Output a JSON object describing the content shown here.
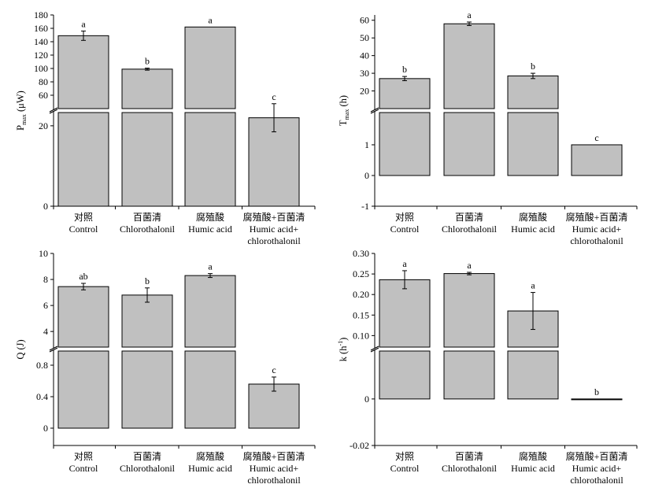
{
  "categories": [
    {
      "cn": "对照",
      "en": "Control"
    },
    {
      "cn": "百菌清",
      "en": "Chlorothalonil"
    },
    {
      "cn": "腐殖酸",
      "en": "Humic acid"
    },
    {
      "cn": "腐殖酸+百菌清",
      "en": "Humic acid+",
      "en2": "chlorothalonil"
    }
  ],
  "colors": {
    "bar_fill": "#c0c0c0",
    "bar_stroke": "#000000"
  },
  "chart_data": [
    {
      "type": "bar",
      "ylabel": "P",
      "ylabel_sub": "max",
      "ylabel_unit": " (μW)",
      "axis_break": true,
      "upper_ticks": [
        "60",
        "80",
        "100",
        "120",
        "140",
        "160",
        "180"
      ],
      "lower_ticks": [
        "0",
        "20"
      ],
      "values": [
        149,
        99,
        162,
        22
      ],
      "errors": [
        7,
        1.5,
        0,
        3.5
      ],
      "significance": [
        "a",
        "b",
        "a",
        "c"
      ]
    },
    {
      "type": "bar",
      "ylabel": "T",
      "ylabel_sub": "max",
      "ylabel_unit": " (h)",
      "axis_break": true,
      "upper_ticks": [
        "20",
        "30",
        "40",
        "50",
        "60"
      ],
      "lower_ticks": [
        "-1",
        "0",
        "1"
      ],
      "values": [
        27,
        58,
        28.5,
        1
      ],
      "errors": [
        1.2,
        1.0,
        1.5,
        0
      ],
      "significance": [
        "b",
        "a",
        "b",
        "c"
      ]
    },
    {
      "type": "bar",
      "ylabel": "Q",
      "ylabel_sub": "",
      "ylabel_unit": " (J)",
      "axis_break": true,
      "upper_ticks": [
        "4",
        "6",
        "8",
        "10"
      ],
      "lower_ticks": [
        "0",
        "0.4",
        "0.8"
      ],
      "values": [
        7.45,
        6.8,
        8.3,
        0.56
      ],
      "errors": [
        0.25,
        0.55,
        0.15,
        0.09
      ],
      "significance": [
        "ab",
        "b",
        "a",
        "c"
      ]
    },
    {
      "type": "bar",
      "ylabel": "k (h",
      "ylabel_sup": "-1",
      "ylabel_unit": ")",
      "axis_break": true,
      "upper_ticks": [
        "0.10",
        "0.15",
        "0.20",
        "0.25",
        "0.30"
      ],
      "lower_ticks": [
        "-0.02",
        "0"
      ],
      "values": [
        0.236,
        0.251,
        0.16,
        0
      ],
      "errors": [
        0.022,
        0.003,
        0.045,
        0
      ],
      "significance": [
        "a",
        "a",
        "a",
        "b"
      ]
    }
  ]
}
